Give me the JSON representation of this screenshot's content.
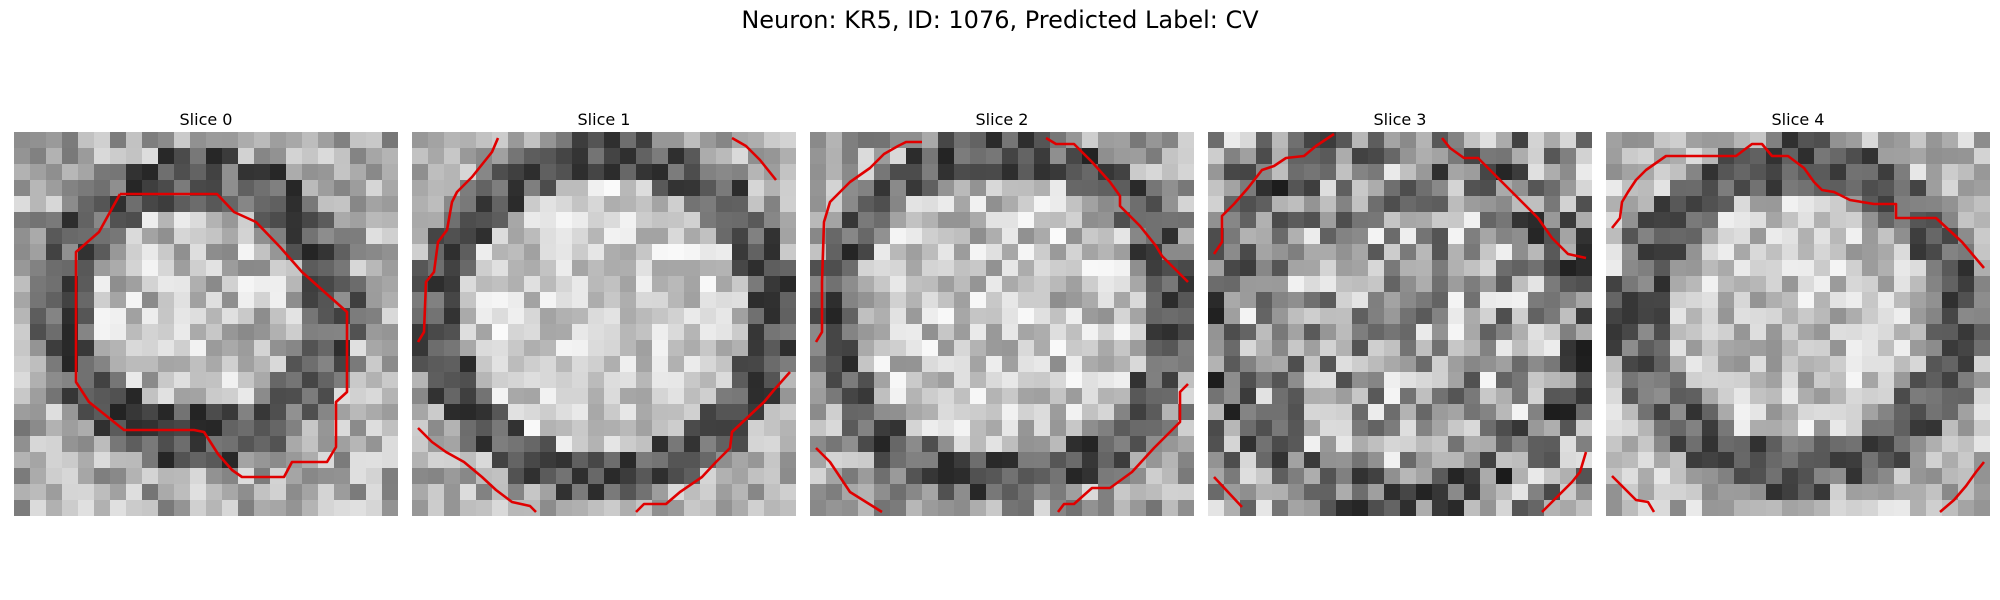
{
  "title": "Neuron: KR5, ID: 1076, Predicted Label: CV",
  "slices": [
    {
      "label": "Slice 0"
    },
    {
      "label": "Slice 1"
    },
    {
      "label": "Slice 2"
    },
    {
      "label": "Slice 3"
    },
    {
      "label": "Slice 4"
    }
  ],
  "colors": {
    "contour": "#e00000",
    "background": "#ffffff"
  }
}
